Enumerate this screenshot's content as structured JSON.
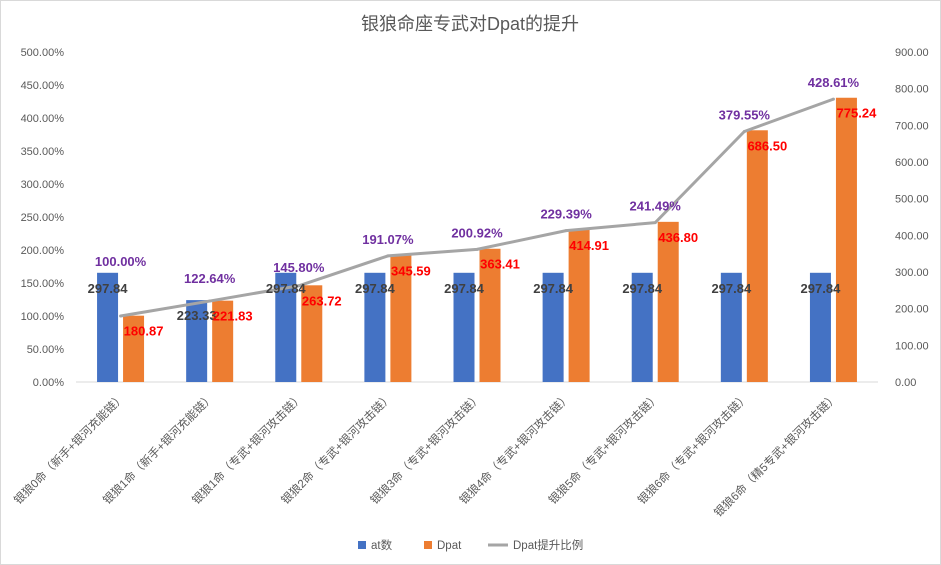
{
  "chart_data": {
    "type": "bar",
    "title": "银狼命座专武对Dpat的提升",
    "categories": [
      "银狼0命（新手+银河充能链）",
      "银狼1命（新手+银河充能链）",
      "银狼1命（专武+银河攻击链）",
      "银狼2命（专武+银河攻击链）",
      "银狼3命（专武+银河攻击链）",
      "银狼4命（专武+银河攻击链）",
      "银狼5命（专武+银河攻击链）",
      "银狼6命（专武+银河攻击链）",
      "银狼6命（精5专武+银河攻击链）"
    ],
    "series": [
      {
        "name": "at数",
        "axis": "right",
        "color": "#4472c4",
        "values": [
          297.84,
          223.33,
          297.84,
          297.84,
          297.84,
          297.84,
          297.84,
          297.84,
          297.84
        ],
        "labels": [
          "297.84",
          "223.33",
          "297.84",
          "297.84",
          "297.84",
          "297.84",
          "297.84",
          "297.84",
          "297.84"
        ]
      },
      {
        "name": "Dpat",
        "axis": "right",
        "color": "#ed7d31",
        "values": [
          180.87,
          221.83,
          263.72,
          345.59,
          363.41,
          414.91,
          436.8,
          686.5,
          775.24
        ],
        "labels": [
          "180.87",
          "221.83",
          "263.72",
          "345.59",
          "363.41",
          "414.91",
          "436.80",
          "686.50",
          "775.24"
        ]
      },
      {
        "name": "Dpat提升比例",
        "axis": "left",
        "type": "line",
        "color": "#a5a5a5",
        "values": [
          100.0,
          122.64,
          145.8,
          191.07,
          200.92,
          229.39,
          241.49,
          379.55,
          428.61
        ],
        "labels": [
          "100.00%",
          "122.64%",
          "145.80%",
          "191.07%",
          "200.92%",
          "229.39%",
          "241.49%",
          "379.55%",
          "428.61%"
        ]
      }
    ],
    "y_left": {
      "min": 0,
      "max": 500,
      "step": 50,
      "ticks": [
        "0.00%",
        "50.00%",
        "100.00%",
        "150.00%",
        "200.00%",
        "250.00%",
        "300.00%",
        "350.00%",
        "400.00%",
        "450.00%",
        "500.00%"
      ]
    },
    "y_right": {
      "min": 0,
      "max": 900,
      "step": 100,
      "ticks": [
        "0.00",
        "100.00",
        "200.00",
        "300.00",
        "400.00",
        "500.00",
        "600.00",
        "700.00",
        "800.00",
        "900.00"
      ]
    },
    "legend_position": "bottom",
    "grid": false
  }
}
